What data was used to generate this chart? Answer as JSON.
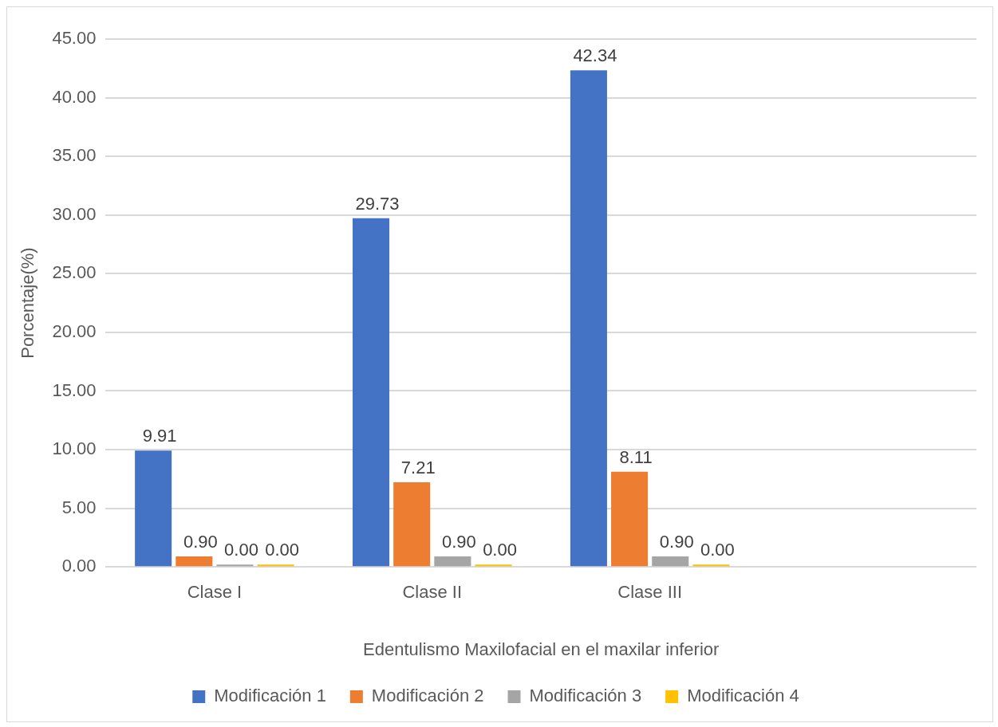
{
  "chart_data": {
    "type": "bar",
    "xlabel": "Edentulismo Maxilofacial en el maxilar inferior",
    "ylabel": "Porcentaje(%)",
    "categories": [
      "Clase I",
      "Clase II",
      "Clase III",
      null
    ],
    "series": [
      {
        "name": "Modificación 1",
        "color": "#4472c4",
        "values": [
          9.91,
          29.73,
          42.34,
          null
        ],
        "value_labels": [
          "9.91",
          "29.73",
          "42.34",
          null
        ]
      },
      {
        "name": "Modificación 2",
        "color": "#ed7d31",
        "values": [
          0.9,
          7.21,
          8.11,
          null
        ],
        "value_labels": [
          "0.90",
          "7.21",
          "8.11",
          null
        ]
      },
      {
        "name": "Modificación 3",
        "color": "#a5a5a5",
        "values": [
          0,
          0.9,
          0.9,
          null
        ],
        "value_labels": [
          "0.00",
          "0.90",
          "0.90",
          null
        ]
      },
      {
        "name": "Modificación 4",
        "color": "#ffc000",
        "values": [
          0,
          0,
          0,
          null
        ],
        "value_labels": [
          "0.00",
          "0.00",
          "0.00",
          null
        ]
      }
    ],
    "ylim": [
      0,
      45
    ],
    "yticks": [
      {
        "value": 0,
        "label": "0.00"
      },
      {
        "value": 5,
        "label": "5.00"
      },
      {
        "value": 10,
        "label": "10.00"
      },
      {
        "value": 15,
        "label": "15.00"
      },
      {
        "value": 20,
        "label": "20.00"
      },
      {
        "value": 25,
        "label": "25.00"
      },
      {
        "value": 30,
        "label": "30.00"
      },
      {
        "value": 35,
        "label": "35.00"
      },
      {
        "value": 40,
        "label": "40.00"
      },
      {
        "value": 45,
        "label": "45.00"
      }
    ],
    "grid": "y",
    "legend": "bottom"
  }
}
